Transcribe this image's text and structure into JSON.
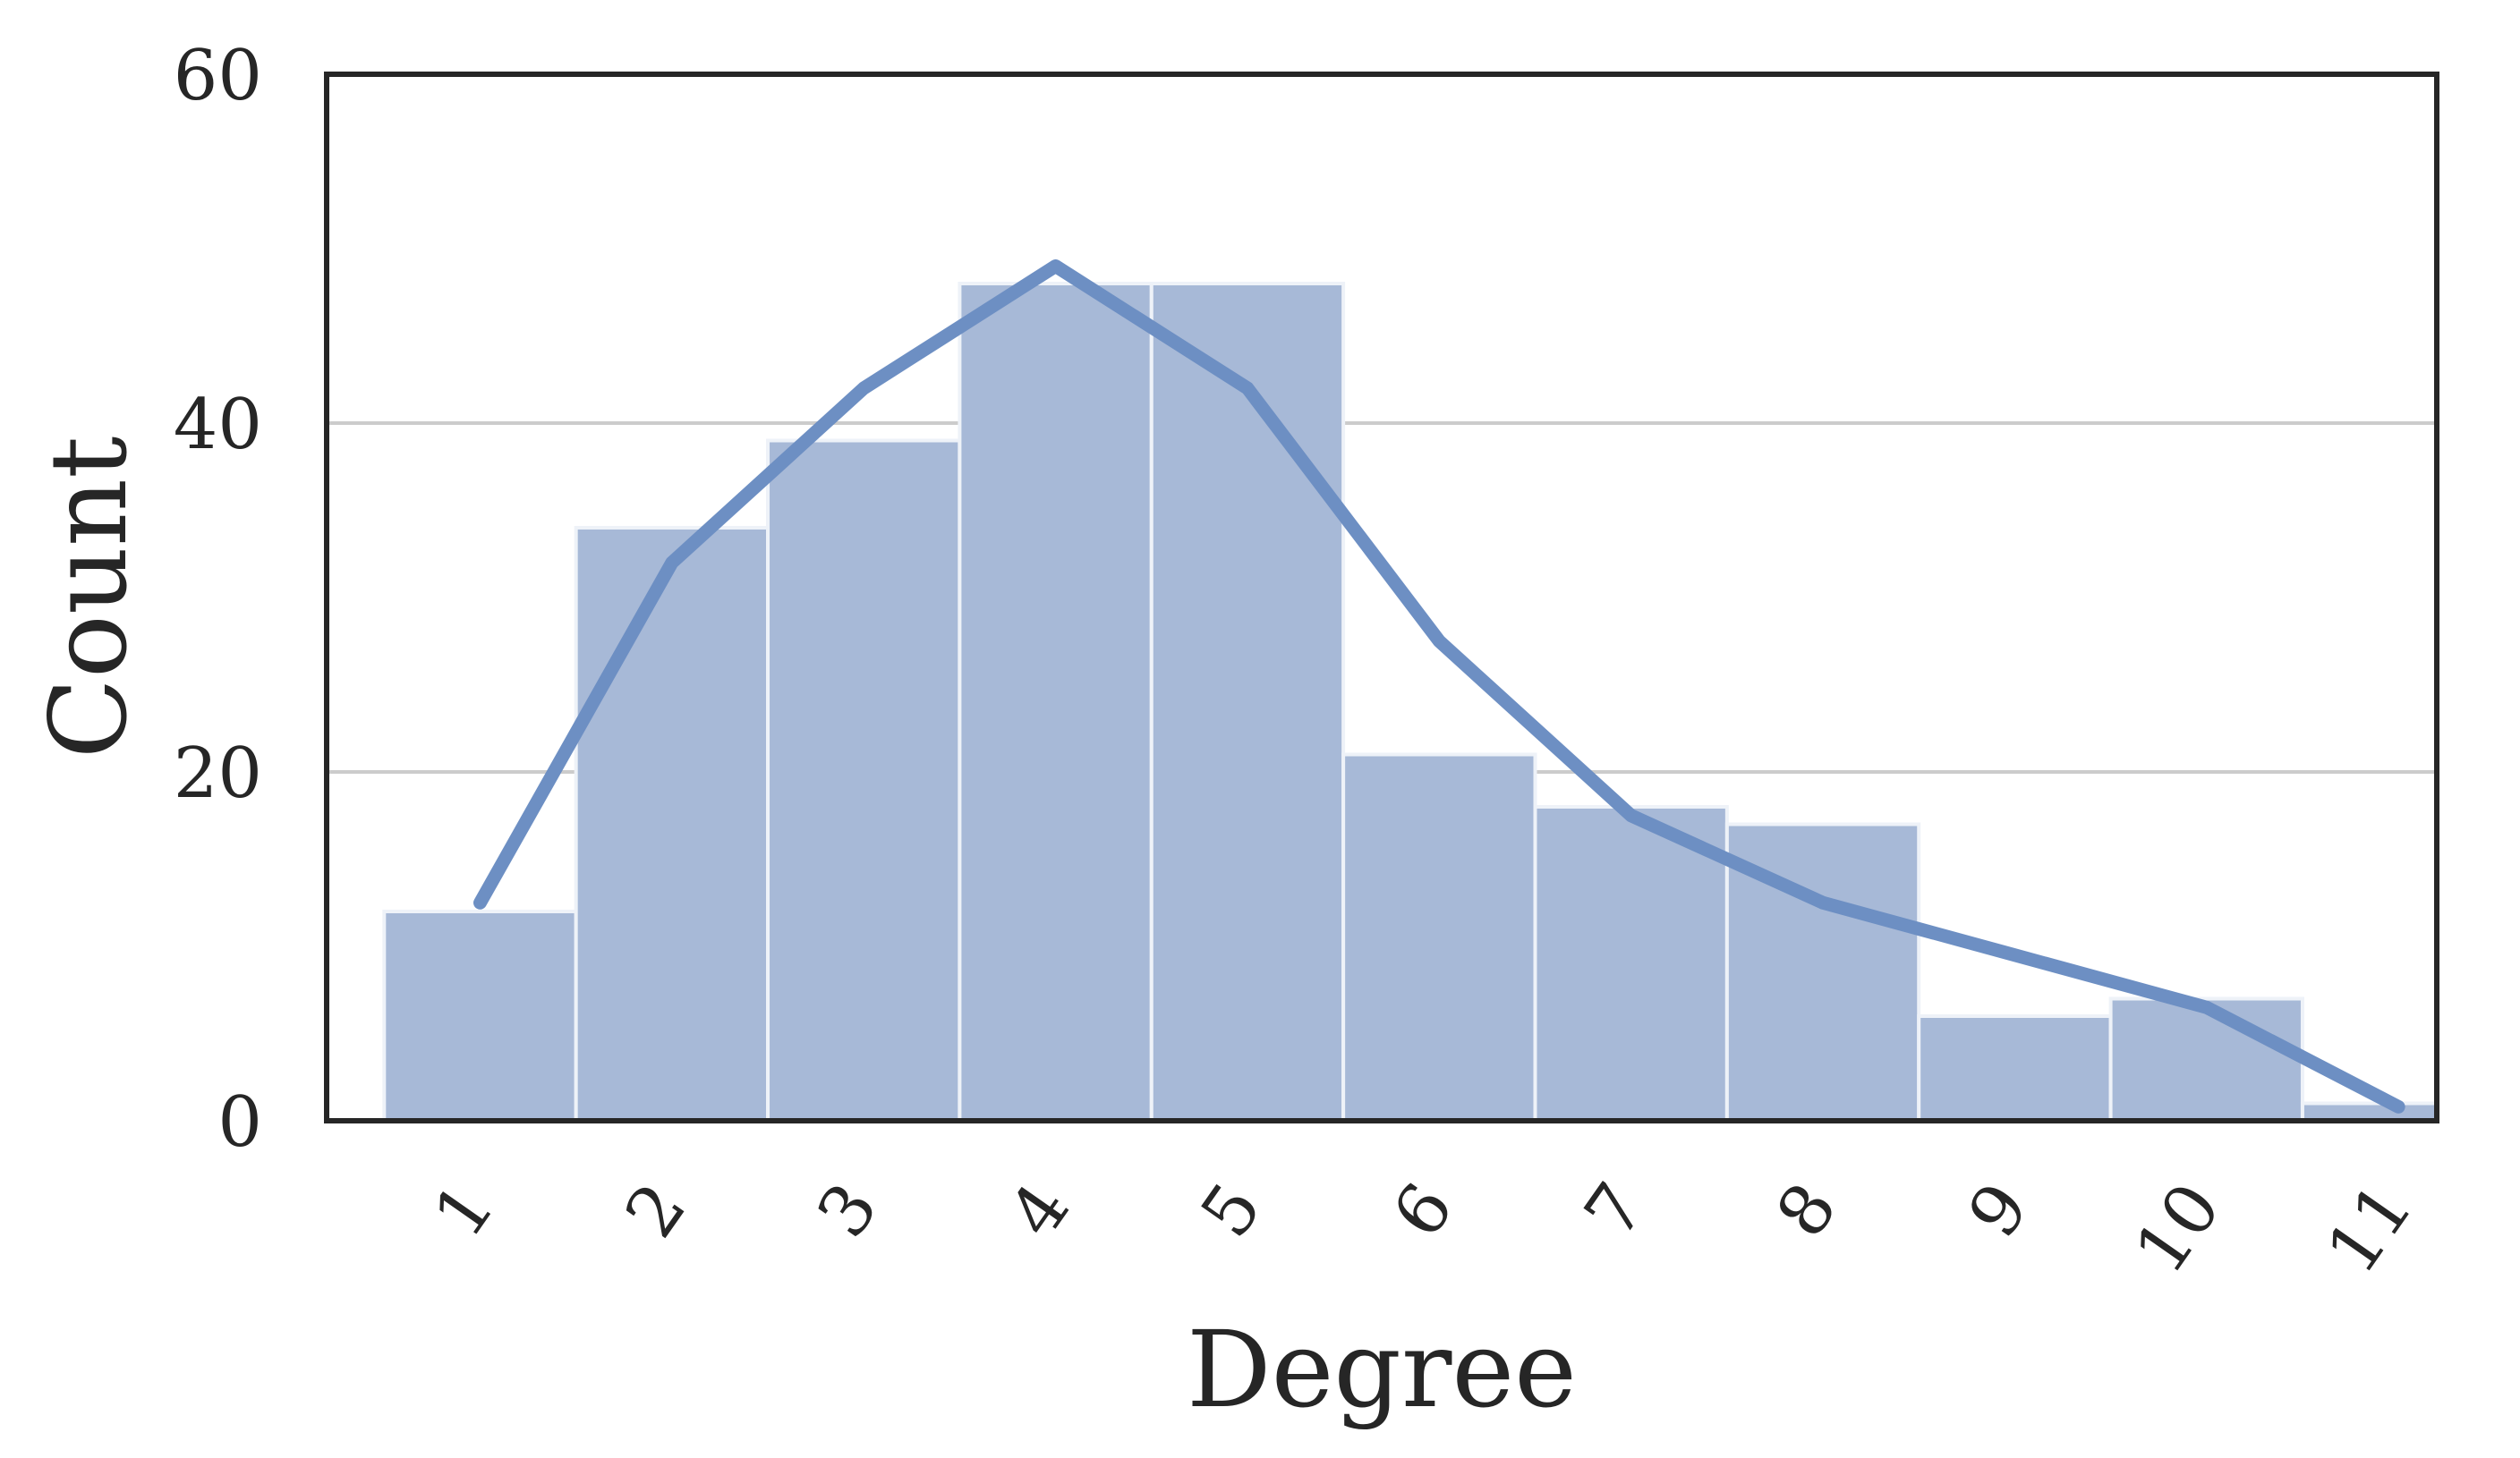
{
  "chart_data": {
    "type": "bar",
    "xlabel": "Degree",
    "ylabel": "Count",
    "x_ticks": [
      "1",
      "2",
      "3",
      "4",
      "5",
      "6",
      "7",
      "8",
      "9",
      "10",
      "11"
    ],
    "y_ticks": [
      "0",
      "20",
      "40",
      "60"
    ],
    "ylim": [
      0,
      60
    ],
    "xlim": [
      0.7,
      11.7
    ],
    "grid": "horizontal",
    "bins": [
      {
        "start": 1.0,
        "end": 2.0,
        "value": 12
      },
      {
        "start": 2.0,
        "end": 3.0,
        "value": 34
      },
      {
        "start": 3.0,
        "end": 4.0,
        "value": 39
      },
      {
        "start": 4.0,
        "end": 5.0,
        "value": 48
      },
      {
        "start": 5.0,
        "end": 6.0,
        "value": 48
      },
      {
        "start": 6.0,
        "end": 7.0,
        "value": 21
      },
      {
        "start": 7.0,
        "end": 8.0,
        "value": 18
      },
      {
        "start": 8.0,
        "end": 9.0,
        "value": 17
      },
      {
        "start": 9.0,
        "end": 10.0,
        "value": 6
      },
      {
        "start": 10.0,
        "end": 11.0,
        "value": 7
      },
      {
        "start": 11.0,
        "end": 12.0,
        "value": 1
      }
    ],
    "density_curve": {
      "x": [
        1.5,
        2.5,
        3.5,
        4.5,
        5.5,
        6.5,
        7.5,
        8.5,
        9.5,
        10.5,
        11.5
      ],
      "y": [
        12.5,
        32,
        42,
        49,
        42,
        27.5,
        17.5,
        12.5,
        9.5,
        6.5,
        0.8
      ]
    },
    "colors": {
      "bar_fill": "#a7b9d7",
      "bar_stroke": "#eef2f8",
      "curve": "#6d8fc3",
      "grid": "#cccccc",
      "frame": "#262626"
    }
  }
}
